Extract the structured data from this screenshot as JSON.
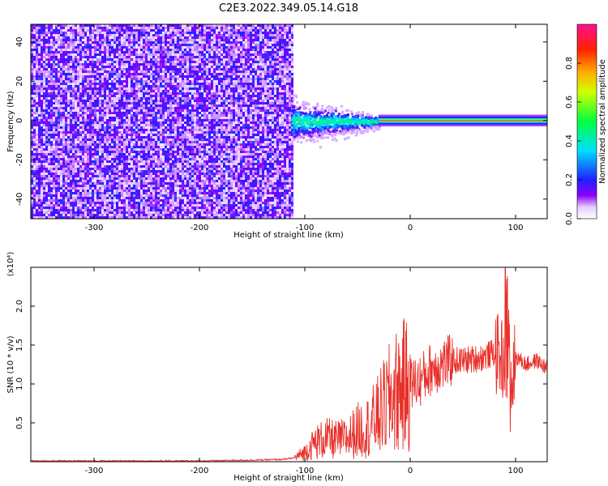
{
  "figure_title": "C2E3.2022.349.05.14.G18",
  "colors": {
    "snr_line": "#e8302a",
    "axis": "#000000",
    "background": "#ffffff"
  },
  "chart_data": [
    {
      "type": "heatmap",
      "title": "C2E3.2022.349.05.14.G18",
      "xlabel": "Height of straight line (km)",
      "ylabel": "Frequency (Hz)",
      "xlim": [
        -360,
        130
      ],
      "ylim": [
        -50,
        49
      ],
      "xticks": [
        -300,
        -200,
        -100,
        0,
        100
      ],
      "yticks": [
        -40,
        -20,
        0,
        20,
        40
      ],
      "colorbar": {
        "label": "Normalized spectral amplitude",
        "range": [
          0,
          1
        ],
        "ticks": [
          "0.0",
          "0.2",
          "0.4",
          "0.6",
          "0.8"
        ],
        "colormap": "rainbow (white-violet-blue-cyan-green-yellow-red-magenta)"
      },
      "regions": [
        {
          "x_range": [
            -360,
            -113
          ],
          "freq_range": [
            -50,
            49
          ],
          "amplitude": "0.05-0.3 (broadband noise)"
        },
        {
          "x_range": [
            -113,
            -30
          ],
          "freq_range": [
            -20,
            12
          ],
          "amplitude": "0.1-0.5 (scattered signal)"
        },
        {
          "x_range": [
            -30,
            130
          ],
          "freq_range": [
            -2,
            2
          ],
          "amplitude": "0.8-1.0 (carrier tone at 0 Hz)"
        }
      ]
    },
    {
      "type": "line",
      "xlabel": "Height of straight line (km)",
      "ylabel": "SNR (10 * v/v)",
      "y_multiplier": "(x10⁴)",
      "xlim": [
        -360,
        130
      ],
      "ylim": [
        0,
        2.5
      ],
      "xticks": [
        -300,
        -200,
        -100,
        0,
        100
      ],
      "yticks": [
        "0.5",
        "1.0",
        "1.5",
        "2.0"
      ],
      "series": [
        {
          "x": [
            -360,
            -300,
            -250,
            -200,
            -150,
            -120,
            -110,
            -100,
            -90,
            -80,
            -70,
            -60,
            -50,
            -40,
            -30,
            -20,
            -10,
            0,
            10,
            20,
            30,
            40,
            50,
            60,
            70,
            80,
            90,
            95,
            100,
            110,
            120,
            130
          ],
          "y": [
            0.01,
            0.01,
            0.01,
            0.01,
            0.02,
            0.03,
            0.05,
            0.12,
            0.25,
            0.3,
            0.28,
            0.3,
            0.4,
            0.45,
            0.6,
            0.8,
            0.95,
            1.0,
            1.05,
            1.2,
            1.25,
            1.3,
            1.3,
            1.32,
            1.35,
            1.4,
            1.3,
            0.9,
            1.35,
            1.25,
            1.3,
            1.2
          ]
        }
      ]
    }
  ]
}
